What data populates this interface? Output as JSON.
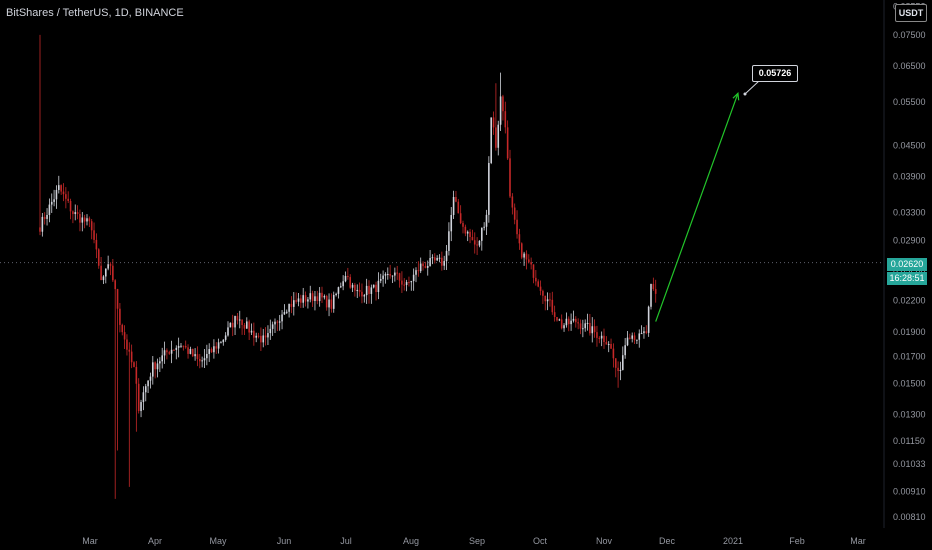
{
  "header": {
    "title": "BitShares / TetherUS, 1D, BINANCE"
  },
  "price_scale": {
    "currency": "USDT"
  },
  "last_price": {
    "value": "0.02620",
    "countdown": "16:28:51"
  },
  "callout": {
    "label": "0.05726"
  },
  "colors": {
    "up": "#d1d4dc",
    "down": "#c62828",
    "arrow": "#22c52a",
    "tag": "#26a69a",
    "axis_text": "#9598a1"
  },
  "chart_data": {
    "type": "candlestick",
    "title": "BitShares / TetherUS, 1D, BINANCE",
    "scale": "log",
    "ylim": [
      0.0078,
      0.0865
    ],
    "y_ticks": [
      0.0081,
      0.0091,
      0.01033,
      0.0115,
      0.013,
      0.015,
      0.017,
      0.019,
      0.022,
      0.025,
      0.029,
      0.033,
      0.039,
      0.045,
      0.055,
      0.065,
      0.075,
      0.08552
    ],
    "y_tick_labels": [
      "0.00810",
      "0.00910",
      "0.01033",
      "0.01150",
      "0.01300",
      "0.01500",
      "0.01700",
      "0.01900",
      "0.02200",
      "0.02500",
      "0.02900",
      "0.03300",
      "0.03900",
      "0.04500",
      "0.05500",
      "0.06500",
      "0.07500",
      "0.08552"
    ],
    "x_labels": [
      "Mar",
      "Apr",
      "May",
      "Jun",
      "Jul",
      "Aug",
      "Sep",
      "Oct",
      "Nov",
      "Dec",
      "2021",
      "Feb",
      "Mar"
    ],
    "anchors": [
      [
        0,
        0.031
      ],
      [
        8,
        0.037
      ],
      [
        14,
        0.033
      ],
      [
        22,
        0.031
      ],
      [
        26,
        0.024
      ],
      [
        30,
        0.026
      ],
      [
        34,
        0.02
      ],
      [
        38,
        0.017
      ],
      [
        40,
        0.016
      ],
      [
        42,
        0.0135
      ],
      [
        45,
        0.0148
      ],
      [
        48,
        0.0162
      ],
      [
        55,
        0.0175
      ],
      [
        60,
        0.018
      ],
      [
        68,
        0.0165
      ],
      [
        72,
        0.0172
      ],
      [
        78,
        0.0185
      ],
      [
        84,
        0.0205
      ],
      [
        90,
        0.019
      ],
      [
        96,
        0.0182
      ],
      [
        104,
        0.0213
      ],
      [
        110,
        0.022
      ],
      [
        118,
        0.0225
      ],
      [
        124,
        0.0215
      ],
      [
        130,
        0.025
      ],
      [
        134,
        0.0228
      ],
      [
        142,
        0.0232
      ],
      [
        150,
        0.025
      ],
      [
        156,
        0.0235
      ],
      [
        162,
        0.0258
      ],
      [
        168,
        0.0263
      ],
      [
        172,
        0.0262
      ],
      [
        176,
        0.035
      ],
      [
        180,
        0.031
      ],
      [
        186,
        0.028
      ],
      [
        190,
        0.033
      ],
      [
        192,
        0.052
      ],
      [
        194,
        0.045
      ],
      [
        196,
        0.056
      ],
      [
        198,
        0.05
      ],
      [
        200,
        0.035
      ],
      [
        204,
        0.028
      ],
      [
        210,
        0.025
      ],
      [
        216,
        0.022
      ],
      [
        222,
        0.0196
      ],
      [
        228,
        0.02
      ],
      [
        236,
        0.019
      ],
      [
        242,
        0.0182
      ],
      [
        246,
        0.0155
      ],
      [
        250,
        0.019
      ],
      [
        255,
        0.0185
      ],
      [
        258,
        0.019
      ],
      [
        260,
        0.0232
      ],
      [
        262,
        0.0225
      ]
    ],
    "projection": {
      "from_index": 262,
      "to_index": 297,
      "target": 0.05726
    },
    "last_price": 0.0262,
    "grid": false
  }
}
